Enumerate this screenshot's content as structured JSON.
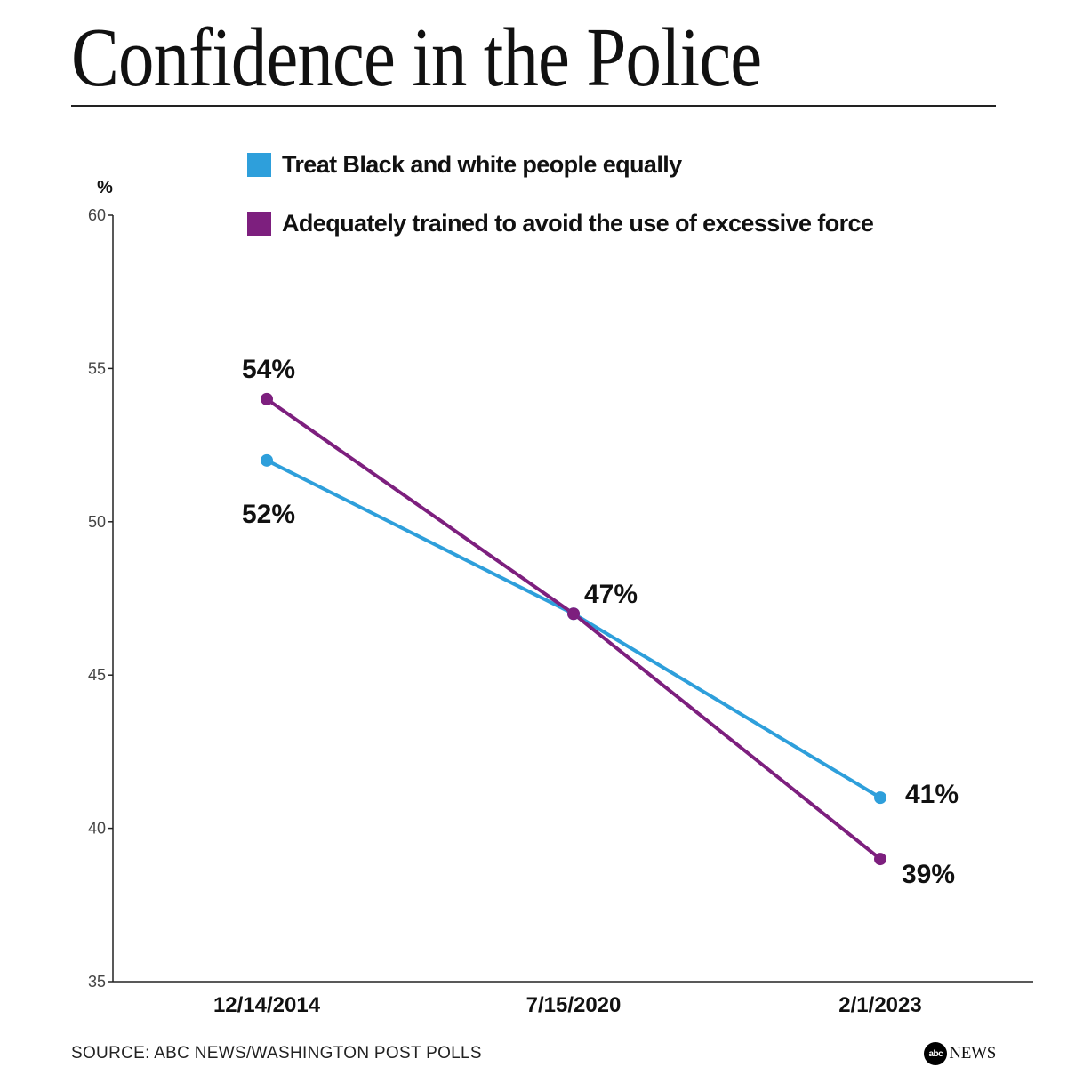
{
  "chart_data": {
    "type": "line",
    "title": "Confidence in the Police",
    "ylabel": "%",
    "xlabel": "",
    "ylim": [
      35,
      60
    ],
    "yticks": [
      35,
      40,
      45,
      50,
      55,
      60
    ],
    "categories": [
      "12/14/2014",
      "7/15/2020",
      "2/1/2023"
    ],
    "series": [
      {
        "name": "Treat Black and white people equally",
        "color": "#2e9fdb",
        "values": [
          52,
          47,
          41
        ],
        "labels": [
          "52%",
          "",
          "41%"
        ]
      },
      {
        "name": "Adequately trained to avoid the use of excessive force",
        "color": "#7d1f7e",
        "values": [
          54,
          47,
          39
        ],
        "labels": [
          "54%",
          "47%",
          "39%"
        ]
      }
    ],
    "legend_position": "top"
  },
  "footer": {
    "source": "SOURCE: ABC NEWS/WASHINGTON POST POLLS",
    "logo_mark": "abc",
    "logo_text": "NEWS"
  }
}
